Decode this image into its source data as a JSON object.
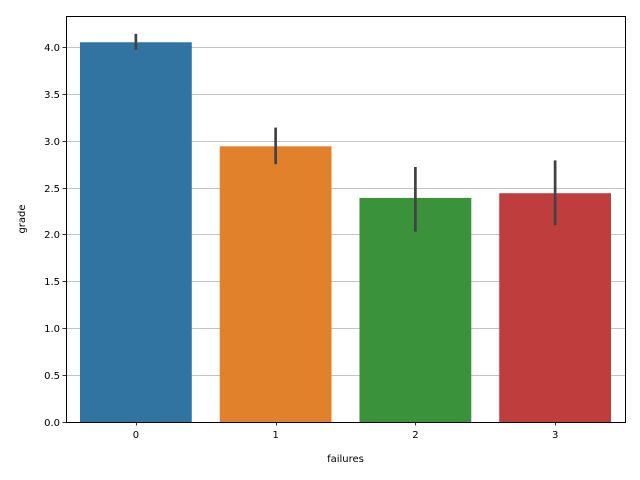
{
  "chart_data": {
    "type": "bar",
    "title": "",
    "xlabel": "failures",
    "ylabel": "grade",
    "categories": [
      "0",
      "1",
      "2",
      "3"
    ],
    "values": [
      4.05,
      2.94,
      2.39,
      2.44
    ],
    "error_bars": [
      {
        "low": 3.97,
        "high": 4.14
      },
      {
        "low": 2.75,
        "high": 3.14
      },
      {
        "low": 2.03,
        "high": 2.72
      },
      {
        "low": 2.1,
        "high": 2.79
      }
    ],
    "colors": [
      "#3274a1",
      "#e1812c",
      "#3a923a",
      "#c03d3e"
    ],
    "ylim": [
      0,
      4.33
    ],
    "yticks": [
      "0.0",
      "0.5",
      "1.0",
      "1.5",
      "2.0",
      "2.5",
      "3.0",
      "3.5",
      "4.0"
    ],
    "grid": "y-major"
  }
}
